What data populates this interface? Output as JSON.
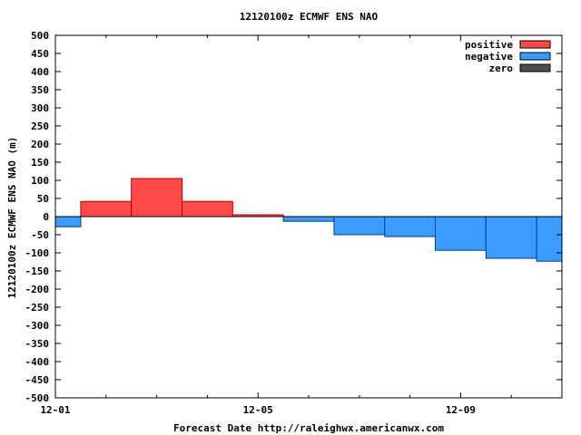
{
  "chart_data": {
    "type": "bar",
    "title": "12120100z ECMWF ENS NAO",
    "xlabel": "Forecast Date http://raleighwx.americanwx.com",
    "ylabel": "12120100z ECMWF ENS NAO (m)",
    "ylim": [
      -500,
      500
    ],
    "yticks": [
      500,
      450,
      400,
      350,
      300,
      250,
      200,
      150,
      100,
      50,
      0,
      -50,
      -100,
      -150,
      -200,
      -250,
      -300,
      -350,
      -400,
      -450,
      -500
    ],
    "xlim": [
      0,
      10
    ],
    "xticks": [
      {
        "x": 0,
        "label": "12-01"
      },
      {
        "x": 4,
        "label": "12-05"
      },
      {
        "x": 8,
        "label": "12-09"
      }
    ],
    "minor_xticks": [
      1,
      2,
      3,
      5,
      6,
      7,
      9
    ],
    "bar_width": 1,
    "bars": [
      {
        "x": 0,
        "value": -28
      },
      {
        "x": 1,
        "value": 42
      },
      {
        "x": 2,
        "value": 105
      },
      {
        "x": 3,
        "value": 42
      },
      {
        "x": 4,
        "value": 5
      },
      {
        "x": 5,
        "value": -13
      },
      {
        "x": 6,
        "value": -50
      },
      {
        "x": 7,
        "value": -55
      },
      {
        "x": 8,
        "value": -93
      },
      {
        "x": 9,
        "value": -115
      },
      {
        "x": 10,
        "value": -123
      }
    ],
    "legend": {
      "placement": "top-right",
      "entries": [
        {
          "label": "positive",
          "color": "#ff4a4a"
        },
        {
          "label": "negative",
          "color": "#3b9cff"
        },
        {
          "label": "zero",
          "color": "#4d4d4d"
        }
      ]
    },
    "colors": {
      "positive": "#ff4a4a",
      "positive_edge": "#b00000",
      "negative": "#3b9cff",
      "negative_edge": "#00407a",
      "zero_line": "#000000"
    },
    "grid": false
  }
}
